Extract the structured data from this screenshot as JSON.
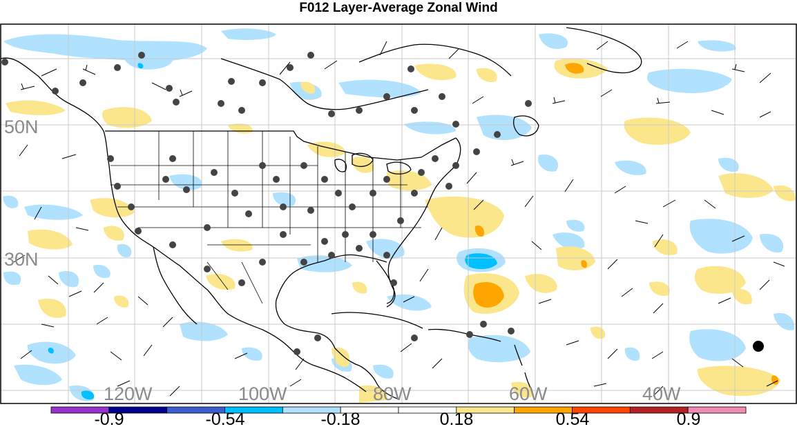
{
  "title": "F012 Layer-Average Zonal Wind",
  "map": {
    "lat_labels": [
      "50N",
      "30N"
    ],
    "lon_labels": [
      "120W",
      "100W",
      "80W",
      "60W",
      "40W"
    ]
  },
  "colorbar": {
    "colors": [
      "#9932cc",
      "#00008b",
      "#3a5fcd",
      "#00bfff",
      "#b0e2ff",
      "#ffffff",
      "#ffffff",
      "#fce68c",
      "#ffa500",
      "#ff4500",
      "#b22222",
      "#f08cb4"
    ],
    "tick_labels": [
      "-0.9",
      "-0.54",
      "-0.18",
      "0.18",
      "0.54",
      "0.9"
    ]
  }
}
